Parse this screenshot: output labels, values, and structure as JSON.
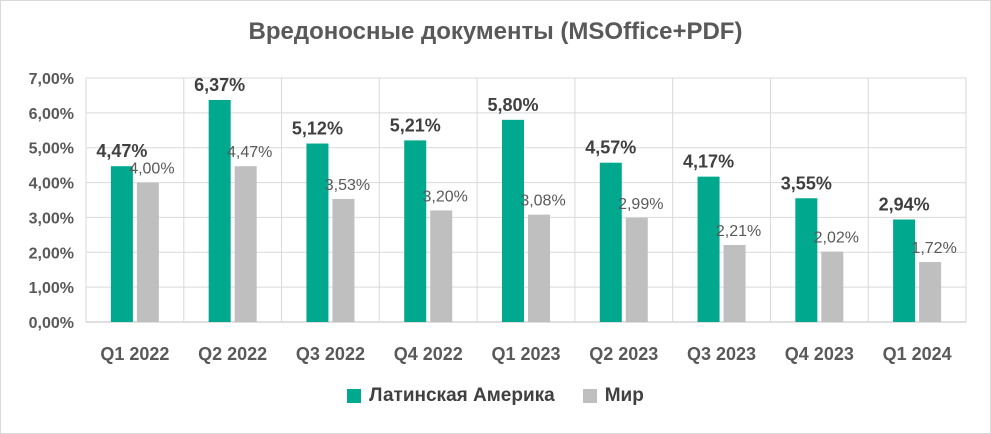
{
  "chart_data": {
    "type": "bar",
    "title": "Вредоносные документы (MSOffice+PDF)",
    "xlabel": "",
    "ylabel": "",
    "ylim": [
      0,
      7
    ],
    "y_ticks": [
      "0,00%",
      "1,00%",
      "2,00%",
      "3,00%",
      "4,00%",
      "5,00%",
      "6,00%",
      "7,00%"
    ],
    "categories": [
      "Q1 2022",
      "Q2 2022",
      "Q3 2022",
      "Q4 2022",
      "Q1 2023",
      "Q2 2023",
      "Q3 2023",
      "Q4 2023",
      "Q1 2024"
    ],
    "series": [
      {
        "name": "Латинская Америка",
        "color": "#00a88e",
        "values": [
          4.47,
          6.37,
          5.12,
          5.21,
          5.8,
          4.57,
          4.17,
          3.55,
          2.94
        ],
        "labels": [
          "4,47%",
          "6,37%",
          "5,12%",
          "5,21%",
          "5,80%",
          "4,57%",
          "4,17%",
          "3,55%",
          "2,94%"
        ]
      },
      {
        "name": "Мир",
        "color": "#bfbfbf",
        "values": [
          4.0,
          4.47,
          3.53,
          3.2,
          3.08,
          2.99,
          2.21,
          2.02,
          1.72
        ],
        "labels": [
          "4,00%",
          "4,47%",
          "3,53%",
          "3,20%",
          "3,08%",
          "2,99%",
          "2,21%",
          "2,02%",
          "1,72%"
        ]
      }
    ],
    "grid": true,
    "legend_position": "bottom"
  }
}
